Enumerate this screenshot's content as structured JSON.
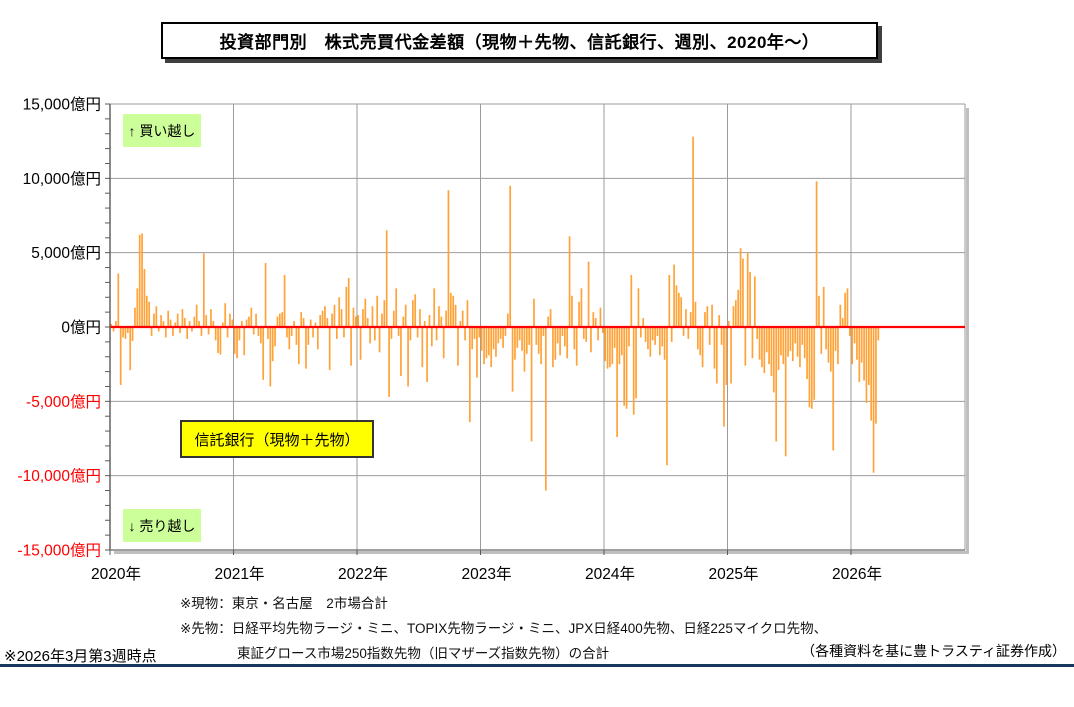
{
  "title": "投資部門別　株式売買代金差額（現物＋先物、信託銀行、週別、2020年～）",
  "annotations": {
    "buy": "↑ 買い越し",
    "sell": "↓ 売り越し",
    "series_label": "信託銀行（現物＋先物）"
  },
  "footnotes": {
    "line1": "※現物：東京・名古屋　2市場合計",
    "line2": "※先物：日経平均先物ラージ・ミニ、TOPIX先物ラージ・ミニ、JPX日経400先物、日経225マイクロ先物、",
    "line3": "東証グロース市場250指数先物（旧マザーズ指数先物）の合計"
  },
  "as_of": "※2026年3月第3週時点",
  "source": "（各種資料を基に豊トラスティ証券作成）",
  "colors": {
    "bar": "#ffa238",
    "zero_line": "#ff0000",
    "grid": "#9b9b9b",
    "axis": "#595959",
    "shadow": "#bfbfbf",
    "negative_tick_label": "#ff0000",
    "positive_tick_label": "#000000",
    "buy_sell_bg": "#ccff99",
    "series_label_bg": "#ffff00",
    "navy_rule": "#17375e"
  },
  "chart_data": {
    "type": "bar",
    "title": "投資部門別　株式売買代金差額（現物＋先物、信託銀行、週別、2020年～）",
    "unit": "億円",
    "frequency": "weekly",
    "ylim": [
      -15000,
      15000
    ],
    "y_tick_step": 5000,
    "y_minor_step": 1000,
    "grid": true,
    "legend_position": "none",
    "y_ticks": [
      {
        "label": "15,000億円",
        "value": 15000
      },
      {
        "label": "10,000億円",
        "value": 10000
      },
      {
        "label": "5,000億円",
        "value": 5000
      },
      {
        "label": "0億円",
        "value": 0
      },
      {
        "label": "-5,000億円",
        "value": -5000
      },
      {
        "label": "-10,000億円",
        "value": -10000
      },
      {
        "label": "-15,000億円",
        "value": -15000
      }
    ],
    "x_ticks": [
      {
        "label": "2020年",
        "year": 2020
      },
      {
        "label": "2021年",
        "year": 2021
      },
      {
        "label": "2022年",
        "year": 2022
      },
      {
        "label": "2023年",
        "year": 2023
      },
      {
        "label": "2024年",
        "year": 2024
      },
      {
        "label": "2025年",
        "year": 2025
      },
      {
        "label": "2026年",
        "year": 2026
      }
    ],
    "series": [
      {
        "name": "信託銀行（現物＋先物）",
        "years": [
          {
            "year": 2020,
            "values": [
              200,
              -300,
              400,
              3600,
              -3900,
              -700,
              -800,
              -400,
              -2900,
              -950,
              1300,
              2600,
              6200,
              6300,
              3900,
              2100,
              1700,
              -600,
              900,
              1400,
              -300,
              800,
              400,
              -700,
              1100,
              500,
              -600,
              300,
              900,
              -400,
              1200,
              600,
              -800,
              400,
              -300,
              700,
              1500,
              400,
              -600,
              4950,
              800,
              -500,
              1200,
              400,
              -900,
              -1750,
              -1850,
              300,
              1600,
              -700,
              900,
              500
            ]
          },
          {
            "year": 2021,
            "values": [
              -1800,
              -2100,
              -900,
              400,
              -1900,
              500,
              700,
              1300,
              -500,
              900,
              -600,
              -1100,
              -3550,
              4300,
              -800,
              -4000,
              -2300,
              -1300,
              700,
              900,
              1000,
              3500,
              -700,
              -1500,
              -600,
              400,
              -1200,
              -2500,
              1000,
              600,
              -2800,
              -1200,
              500,
              -700,
              300,
              -1500,
              800,
              1100,
              1400,
              600,
              -2900,
              900,
              1500,
              -800,
              2000,
              1200,
              -700,
              2700,
              3300,
              -2600,
              1300,
              700
            ]
          },
          {
            "year": 2022,
            "values": [
              800,
              -2200,
              1200,
              1900,
              600,
              -1100,
              1400,
              -900,
              2100,
              -1700,
              900,
              1800,
              6500,
              -4700,
              -800,
              1100,
              2600,
              -600,
              -3300,
              700,
              1500,
              -4000,
              -900,
              1800,
              2200,
              -700,
              1200,
              -2700,
              400,
              -3700,
              800,
              -1300,
              2600,
              -900,
              1400,
              700,
              -2100,
              1100,
              9200,
              2300,
              2100,
              1500,
              -2600,
              400,
              1100,
              -900,
              1800,
              -6400,
              -1500,
              -800,
              -3400,
              -700
            ]
          },
          {
            "year": 2023,
            "values": [
              -1600,
              -2500,
              -2100,
              -1900,
              -2700,
              -1500,
              -2000,
              -1100,
              -800,
              -1400,
              -600,
              900,
              9500,
              -4350,
              -2200,
              -1400,
              -900,
              -1600,
              -3000,
              -1800,
              -1200,
              -7700,
              1900,
              -1200,
              -1800,
              -2500,
              -600,
              -11000,
              700,
              1200,
              -2700,
              -2200,
              -1100,
              -1900,
              -600,
              -1300,
              -2100,
              6100,
              2100,
              -1500,
              -2600,
              1700,
              2600,
              -800,
              -1000,
              4400,
              -1700,
              1000,
              600,
              -900,
              1300,
              -400
            ]
          },
          {
            "year": 2024,
            "values": [
              -2300,
              -2800,
              -2700,
              -2500,
              -1400,
              -7400,
              -2500,
              -1900,
              -5300,
              -5500,
              -1300,
              3500,
              -5900,
              -4800,
              2600,
              -700,
              600,
              -1000,
              -1500,
              -2000,
              -900,
              -1200,
              -600,
              -1900,
              -1300,
              -2200,
              -9300,
              3500,
              -1000,
              4200,
              2800,
              2300,
              2000,
              -600,
              1200,
              -800,
              1000,
              12800,
              1700,
              -1500,
              -1900,
              -2700,
              1000,
              1400,
              -1200,
              1500,
              -2800,
              -3800,
              800,
              -1200,
              -6700,
              -3900
            ]
          },
          {
            "year": 2025,
            "values": [
              400,
              -3800,
              1400,
              1800,
              2500,
              5300,
              4600,
              -2600,
              5000,
              3700,
              -2100,
              3400,
              -800,
              -2200,
              -2700,
              -3100,
              -1700,
              -2500,
              -3300,
              -4400,
              -7700,
              -2900,
              -1900,
              -2500,
              -8700,
              -2000,
              -1600,
              -2300,
              -1100,
              -2000,
              -2700,
              -1200,
              -2100,
              -3500,
              -5400,
              -5500,
              -4900,
              9800,
              2100,
              -1800,
              2700,
              -1500,
              -2400,
              -3000,
              -8300,
              -1600,
              -2500,
              1500,
              600,
              2300,
              2600,
              -600
            ]
          },
          {
            "year": 2026,
            "values": [
              -2500,
              -1100,
              -2200,
              -3700,
              -2400,
              -3600,
              -5100,
              -3900,
              -6300,
              -9800,
              -6500,
              -900
            ]
          }
        ]
      }
    ]
  }
}
